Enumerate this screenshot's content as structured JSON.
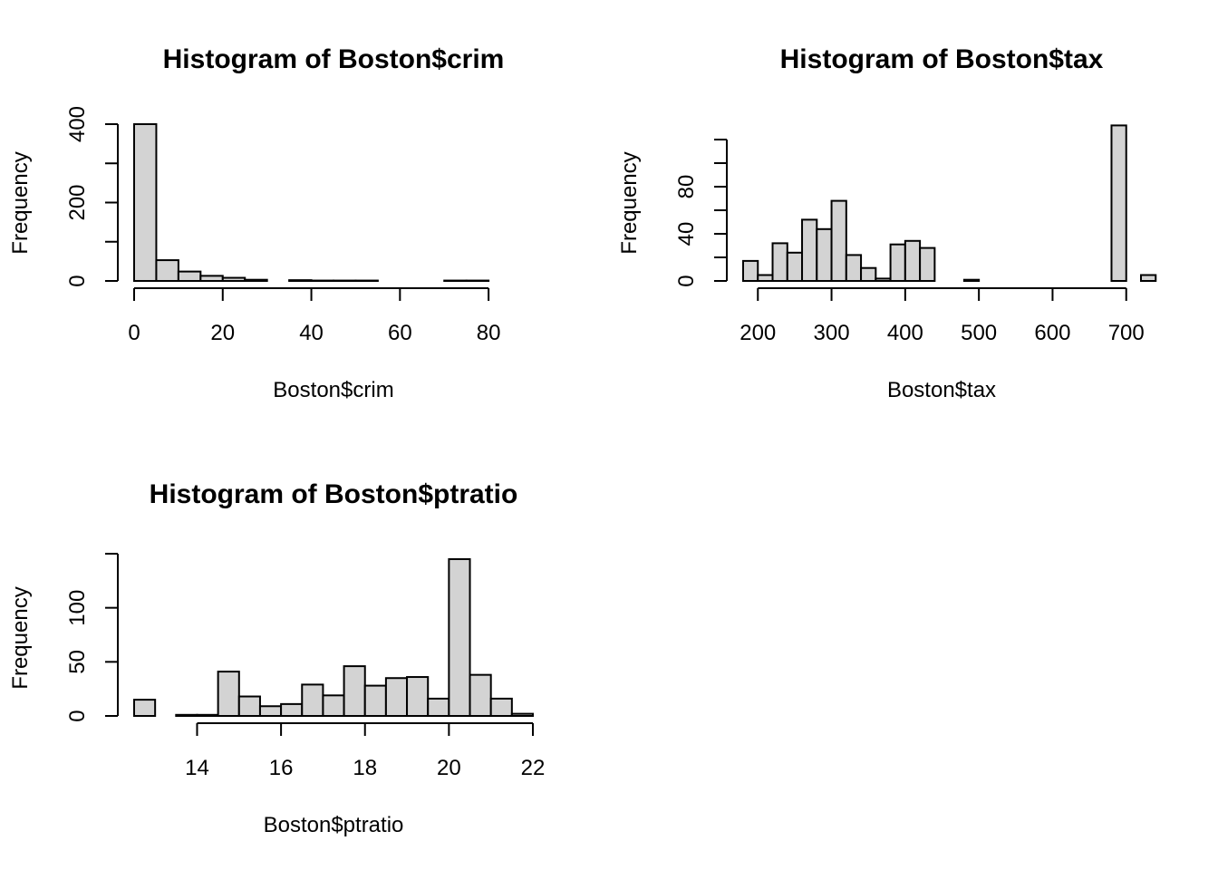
{
  "chart_data": [
    {
      "type": "bar",
      "title": "Histogram of Boston$crim",
      "xlabel": "Boston$crim",
      "ylabel": "Frequency",
      "bin_width": 5,
      "x_start": 0,
      "values": [
        400,
        53,
        24,
        13,
        8,
        3,
        0,
        2,
        1,
        1,
        1,
        0,
        0,
        0,
        1,
        1,
        0,
        0
      ],
      "xlim": [
        0,
        90
      ],
      "ylim": [
        0,
        400
      ],
      "x_ticks": [
        0,
        20,
        40,
        60,
        80
      ],
      "y_ticks": [
        0,
        100,
        200,
        300,
        400
      ],
      "y_tick_labels": [
        "0",
        "",
        "200",
        "",
        "400"
      ]
    },
    {
      "type": "bar",
      "title": "Histogram of Boston$tax",
      "xlabel": "Boston$tax",
      "ylabel": "Frequency",
      "bin_width": 20,
      "x_start": 180,
      "values": [
        17,
        5,
        32,
        24,
        52,
        44,
        68,
        22,
        11,
        2,
        31,
        34,
        28,
        0,
        0,
        1,
        0,
        0,
        0,
        0,
        0,
        0,
        0,
        0,
        0,
        132,
        0,
        5
      ],
      "xlim": [
        180,
        720
      ],
      "ylim": [
        0,
        120
      ],
      "x_ticks": [
        200,
        300,
        400,
        500,
        600,
        700
      ],
      "y_ticks": [
        0,
        20,
        40,
        60,
        80,
        100,
        120
      ],
      "y_tick_labels": [
        "0",
        "",
        "40",
        "",
        "80",
        "",
        ""
      ]
    },
    {
      "type": "bar",
      "title": "Histogram of Boston$ptratio",
      "xlabel": "Boston$ptratio",
      "ylabel": "Frequency",
      "bin_width": 0.5,
      "x_start": 12.5,
      "values": [
        15,
        0,
        1,
        1,
        41,
        18,
        9,
        11,
        29,
        19,
        46,
        28,
        35,
        36,
        16,
        145,
        38,
        16,
        2
      ],
      "xlim": [
        12.5,
        22
      ],
      "ylim": [
        0,
        150
      ],
      "x_ticks": [
        14,
        16,
        18,
        20,
        22
      ],
      "y_ticks": [
        0,
        50,
        100,
        150
      ],
      "y_tick_labels": [
        "0",
        "50",
        "100",
        ""
      ]
    }
  ]
}
